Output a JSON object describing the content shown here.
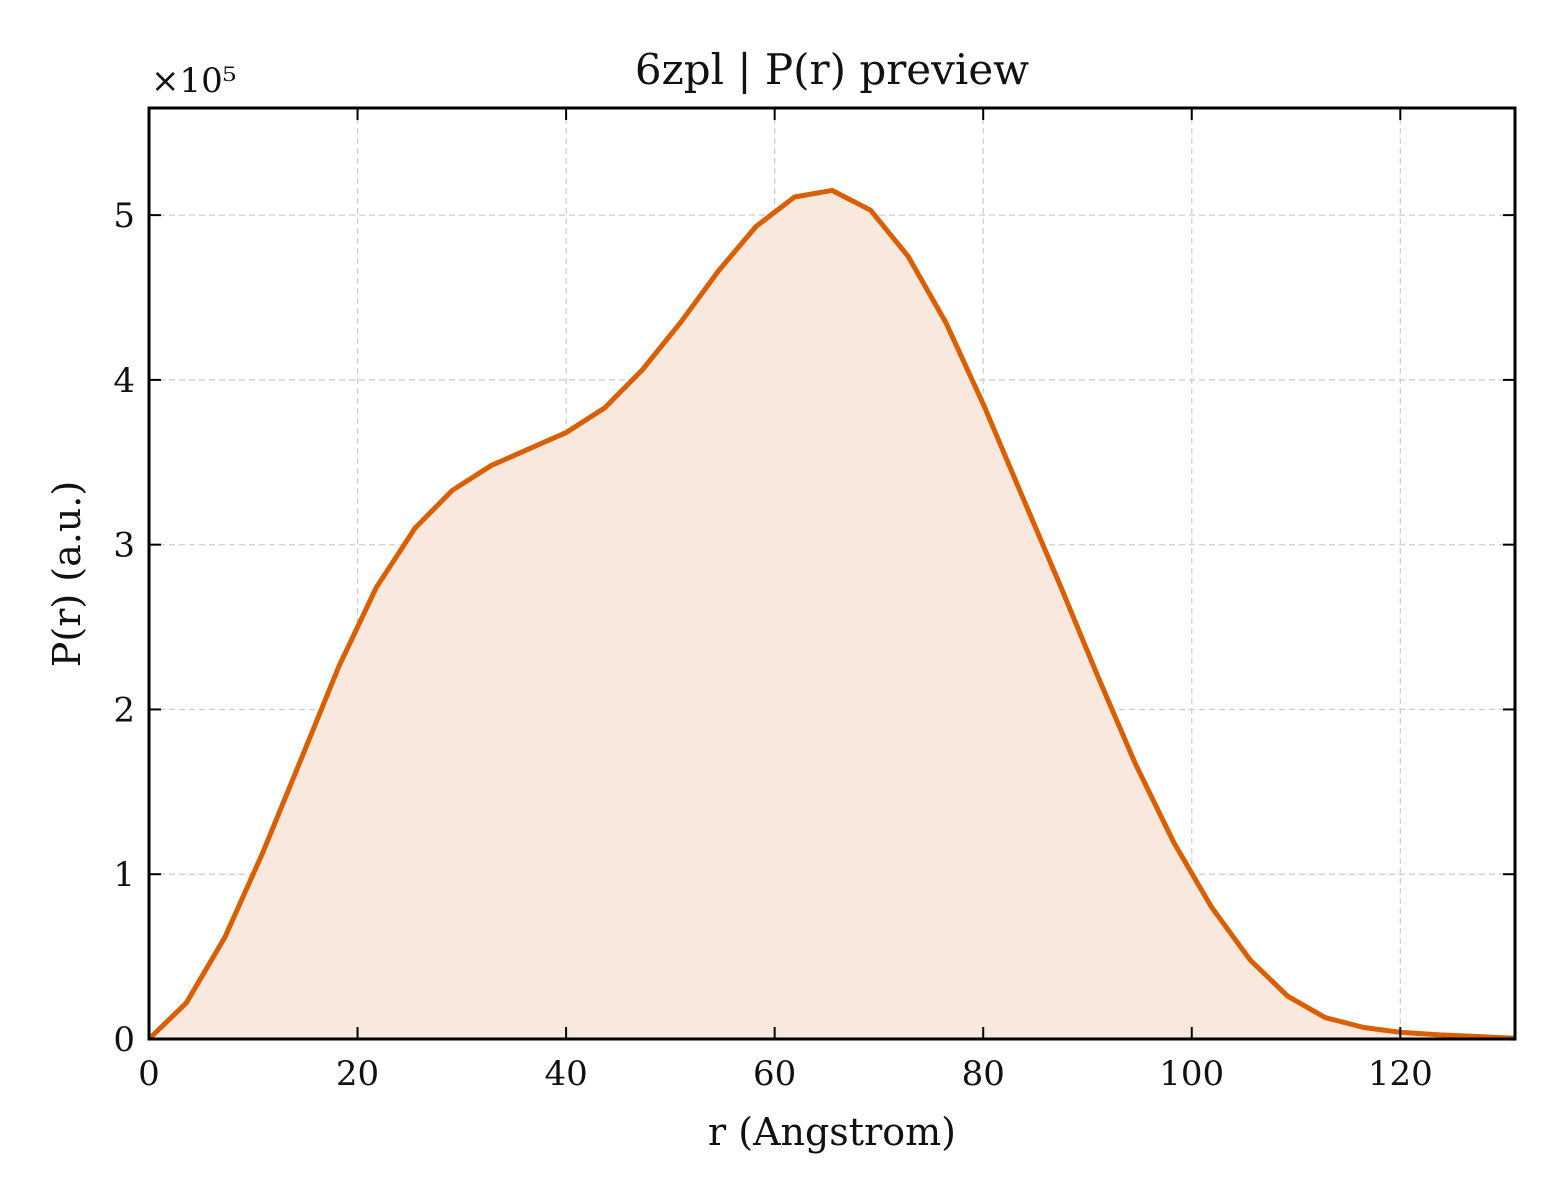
{
  "chart_data": {
    "type": "area",
    "title": "6zpl | P(r) preview",
    "xlabel": "r (Angstrom)",
    "ylabel": "P(r) (a.u.)",
    "y_offset_label": "×10⁵",
    "xlim": [
      0,
      131
    ],
    "ylim": [
      0,
      5.65
    ],
    "y_scale_factor": 100000,
    "xticks": [
      0,
      20,
      40,
      60,
      80,
      100,
      120
    ],
    "yticks": [
      0,
      1,
      2,
      3,
      4,
      5
    ],
    "grid": true,
    "line_color": "#d95f02",
    "fill_color": "#f8e8dd",
    "series": [
      {
        "x": [
          0,
          3.6,
          7.3,
          10.9,
          14.6,
          18.2,
          21.8,
          25.5,
          29.1,
          32.8,
          36.4,
          40.0,
          43.7,
          47.3,
          51.0,
          54.6,
          58.2,
          61.9,
          65.5,
          69.2,
          72.8,
          76.4,
          80.1,
          83.7,
          87.4,
          91.0,
          94.6,
          98.3,
          101.9,
          105.6,
          109.2,
          112.8,
          116.5,
          120.1,
          123.8,
          127.4,
          131.0
        ],
        "y": [
          0.0,
          0.22,
          0.62,
          1.13,
          1.7,
          2.26,
          2.74,
          3.1,
          3.33,
          3.48,
          3.58,
          3.68,
          3.83,
          4.06,
          4.35,
          4.66,
          4.93,
          5.11,
          5.15,
          5.03,
          4.75,
          4.35,
          3.84,
          3.3,
          2.75,
          2.2,
          1.67,
          1.19,
          0.8,
          0.48,
          0.26,
          0.13,
          0.07,
          0.04,
          0.025,
          0.015,
          0.005
        ]
      }
    ]
  }
}
